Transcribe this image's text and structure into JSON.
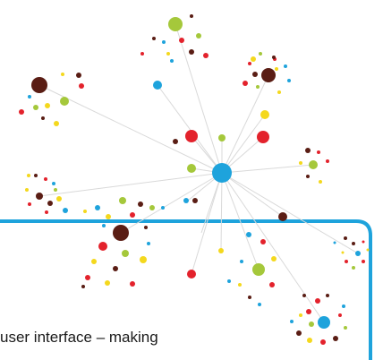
{
  "caption": {
    "text": "user interface – making"
  },
  "colors": {
    "frame": "#1ea3dc",
    "edge": "#d9d9d9",
    "hub": "#1ea3dc",
    "red": "#e3222c",
    "maroon": "#5a1d14",
    "green": "#a5c83b",
    "yellow": "#f4d81d",
    "blue": "#1ea3dc"
  }
}
